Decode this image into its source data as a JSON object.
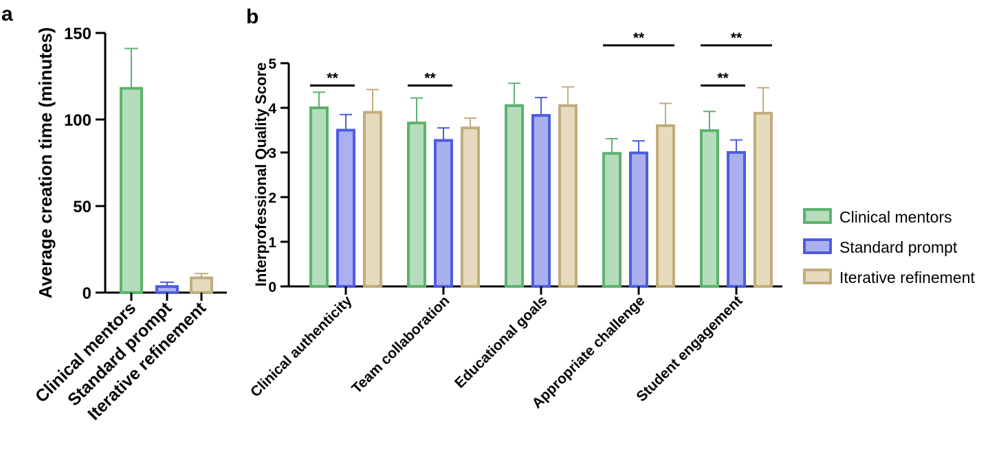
{
  "panels": {
    "a": "a",
    "b": "b"
  },
  "colors": {
    "clinical_fill": "#b5dcbb",
    "clinical_stroke": "#5cb36c",
    "standard_fill": "#aab0ee",
    "standard_stroke": "#4c5de0",
    "iterative_fill": "#e6dbbd",
    "iterative_stroke": "#c1ad7c"
  },
  "chart_data": [
    {
      "type": "bar",
      "panel": "a",
      "ylabel": "Average creation time (minutes)",
      "categories": [
        "Clinical mentors",
        "Standard prompt",
        "Iterative refinement"
      ],
      "values": [
        118,
        3.5,
        8.5
      ],
      "errors": [
        23,
        2.5,
        2.5
      ],
      "ylim": [
        0,
        150
      ],
      "yticks": [
        "0",
        "50",
        "100",
        "150"
      ],
      "ytick_values": [
        0,
        50,
        100,
        150
      ]
    },
    {
      "type": "bar",
      "panel": "b",
      "ylabel": "Interprofessional Quality Score",
      "categories": [
        "Clinical authenticity",
        "Team collaboration",
        "Educational goals",
        "Appropriate challenge",
        "Student engagement"
      ],
      "series": [
        {
          "name": "Clinical mentors",
          "values": [
            4.0,
            3.66,
            4.05,
            2.98,
            3.49
          ],
          "errors": [
            0.35,
            0.56,
            0.5,
            0.33,
            0.43
          ]
        },
        {
          "name": "Standard prompt",
          "values": [
            3.5,
            3.27,
            3.83,
            2.99,
            3.0
          ],
          "errors": [
            0.35,
            0.28,
            0.4,
            0.27,
            0.28
          ]
        },
        {
          "name": "Iterative refinement",
          "values": [
            3.9,
            3.55,
            4.05,
            3.6,
            3.88
          ],
          "errors": [
            0.51,
            0.22,
            0.42,
            0.5,
            0.57
          ]
        }
      ],
      "ylim": [
        0,
        5
      ],
      "yticks": [
        "0",
        "1",
        "2",
        "3",
        "4",
        "5"
      ],
      "ytick_values": [
        0,
        1,
        2,
        3,
        4,
        5
      ],
      "significance": [
        {
          "category": 0,
          "from": 0,
          "to": 1,
          "label": "**",
          "level": 4.5
        },
        {
          "category": 1,
          "from": 0,
          "to": 1,
          "label": "**",
          "level": 4.5
        },
        {
          "category": 3,
          "from": 0,
          "to": 2,
          "label": "**",
          "level": 5.4
        },
        {
          "category": 4,
          "from": 0,
          "to": 1,
          "label": "**",
          "level": 4.5
        },
        {
          "category": 4,
          "from": 0,
          "to": 2,
          "label": "**",
          "level": 5.4
        }
      ]
    }
  ],
  "legend": [
    "Clinical mentors",
    "Standard prompt",
    "Iterative refinement"
  ]
}
